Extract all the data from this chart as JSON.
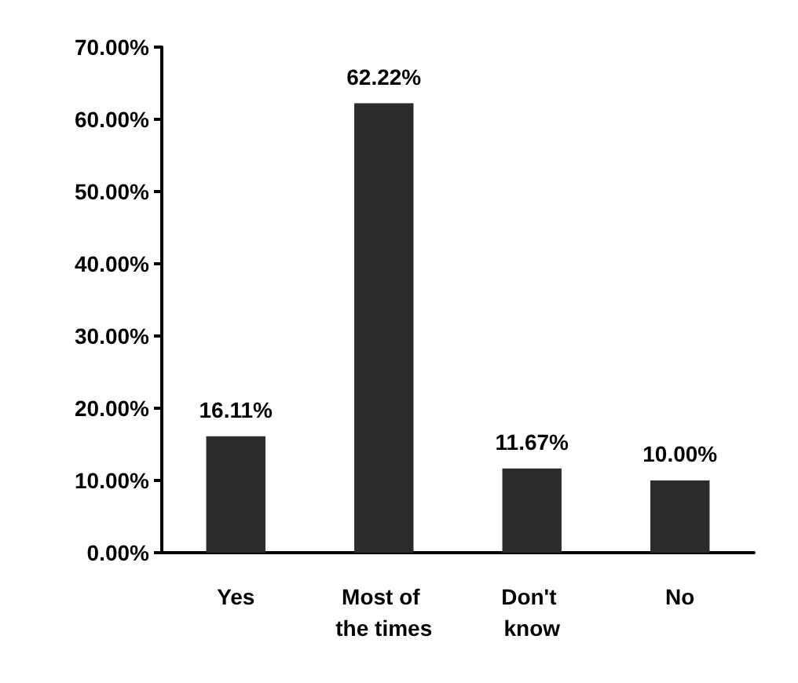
{
  "chart_data": {
    "type": "bar",
    "categories": [
      "Yes",
      "Most of the times",
      "Don't know",
      "No"
    ],
    "values": [
      16.11,
      62.22,
      11.67,
      10.0
    ],
    "value_labels": [
      "16.11%",
      "62.22%",
      "11.67%",
      "10.00%"
    ],
    "color": "#2b2b2b",
    "ylim": [
      0,
      70
    ],
    "yticks": [
      {
        "value": 0,
        "label": "0.00%"
      },
      {
        "value": 10,
        "label": "10.00%"
      },
      {
        "value": 20,
        "label": "20.00%"
      },
      {
        "value": 30,
        "label": "30.00%"
      },
      {
        "value": 40,
        "label": "40.00%"
      },
      {
        "value": 50,
        "label": "50.00%"
      },
      {
        "value": 60,
        "label": "60.00%"
      },
      {
        "value": 70,
        "label": "70.00%"
      }
    ],
    "grid": false
  }
}
